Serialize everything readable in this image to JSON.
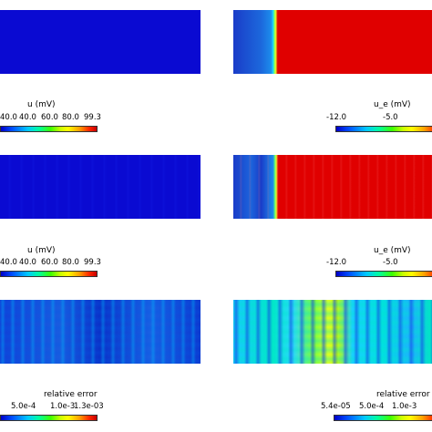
{
  "colorbars": {
    "u_1": {
      "title": "u (mV)",
      "ticks": [
        "40.0",
        "40.0",
        "60.0",
        "80.0",
        "99.3"
      ]
    },
    "ue_1": {
      "title": "u_e (mV)",
      "ticks": [
        "-12.0",
        "-5.0"
      ]
    },
    "u_2": {
      "title": "u (mV)",
      "ticks": [
        "40.0",
        "40.0",
        "60.0",
        "80.0",
        "99.3"
      ]
    },
    "ue_2": {
      "title": "u_e (mV)",
      "ticks": [
        "-12.0",
        "-5.0"
      ]
    },
    "err_1": {
      "title": "relative error",
      "ticks": [
        "5.0e-4",
        "1.0e-3",
        "1.3e-03"
      ]
    },
    "err_2": {
      "title": "relative error",
      "ticks": [
        "5.4e-05",
        "5.0e-4",
        "1.0e-3"
      ]
    }
  },
  "colors": {
    "deep_blue": "#0a0ad2",
    "red": "#e00000",
    "interface_green": "#7cff3a"
  }
}
